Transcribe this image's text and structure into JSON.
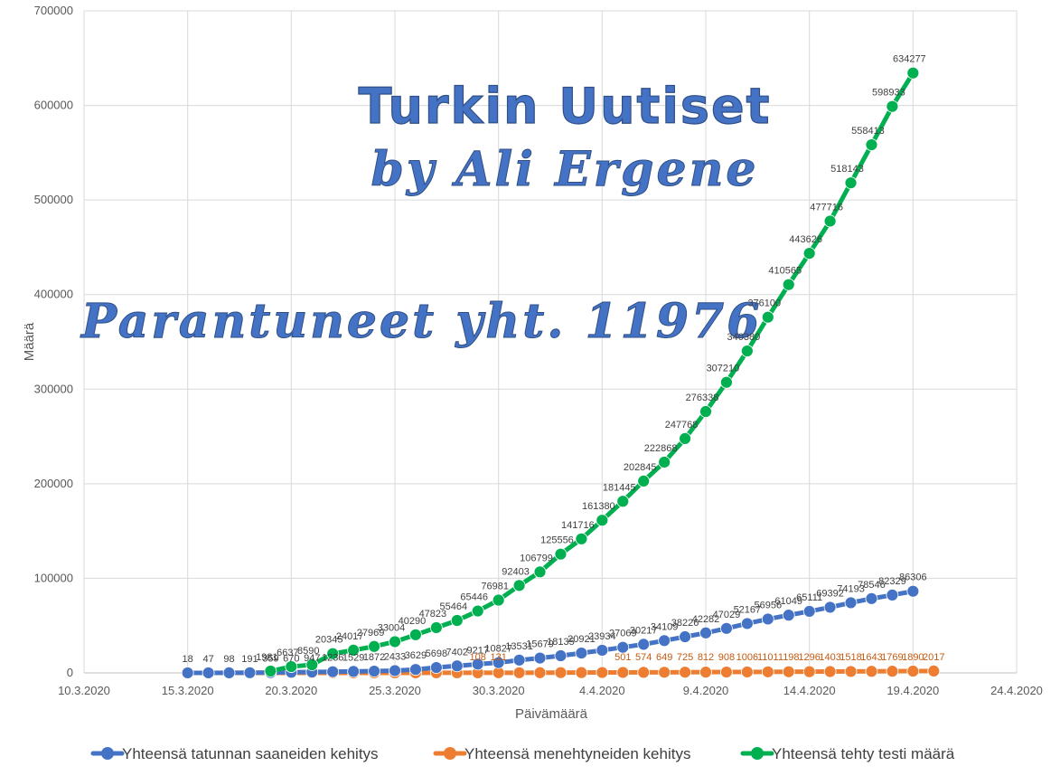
{
  "watermark": {
    "line1": "Turkin Uutiset",
    "line2": "by Ali Ergene",
    "line3": "Parantuneet yht. 11976"
  },
  "chart_data": {
    "type": "scatter",
    "mode": "lines+markers",
    "title": "",
    "xlabel": "Päivämäärä",
    "ylabel": "Määrä",
    "x_axis_type": "date",
    "xlim": [
      "2020-03-10",
      "2020-04-24"
    ],
    "ylim": [
      0,
      700000
    ],
    "x_ticks": [
      "10.3.2020",
      "15.3.2020",
      "20.3.2020",
      "25.3.2020",
      "30.3.2020",
      "4.4.2020",
      "9.4.2020",
      "14.4.2020",
      "19.4.2020",
      "24.4.2020"
    ],
    "y_ticks": [
      "0",
      "100000",
      "200000",
      "300000",
      "400000",
      "500000",
      "600000",
      "700000"
    ],
    "grid": true,
    "legend_position": "bottom",
    "series": [
      {
        "name": "Yhteensä tatunnan saaneiden kehitys",
        "color": "#4472C4",
        "start_date": "2020-03-15",
        "values": [
          18,
          47,
          98,
          191,
          359,
          670,
          947,
          1236,
          1529,
          1872,
          2433,
          3629,
          5698,
          7402,
          9217,
          10827,
          13531,
          15679,
          18135,
          20921,
          23934,
          27069,
          30217,
          34109,
          38226,
          42282,
          47029,
          52167,
          56956,
          61049,
          65111,
          69392,
          74193,
          78546,
          82329,
          86306
        ],
        "labels": [
          "18",
          "47",
          "98",
          "191",
          "359",
          "670",
          "947",
          "1236",
          "1529",
          "1872",
          "2433",
          "3629",
          "5698",
          "7402",
          "9217",
          "10827",
          "13531",
          "15679",
          "18135",
          "20921",
          "23934",
          "27069",
          "30217",
          "34109",
          "38226",
          "42282",
          "47029",
          "52167",
          "56956",
          "61049",
          "65111",
          "69392",
          "74193",
          "78546",
          "82329",
          "86306"
        ]
      },
      {
        "name": "Yhteensä menehtyneiden kehitys",
        "color": "#ED7D31",
        "start_date": "2020-03-16",
        "values": [
          0,
          1,
          2,
          3,
          4,
          9,
          21,
          30,
          37,
          44,
          59,
          75,
          92,
          108,
          131,
          168,
          214,
          277,
          356,
          425,
          501,
          574,
          649,
          725,
          812,
          908,
          1006,
          1101,
          1198,
          1296,
          1403,
          1518,
          1643,
          1769,
          1890,
          2017
        ],
        "labels": [
          "",
          "",
          "",
          "",
          "",
          "",
          "",
          "",
          "",
          "",
          "",
          "",
          "",
          "108",
          "131",
          "",
          "",
          "",
          "",
          "",
          "501",
          "574",
          "649",
          "725",
          "812",
          "908",
          "1006",
          "1101",
          "1198",
          "1296",
          "1403",
          "1518",
          "1643",
          "1769",
          "1890",
          "2017"
        ]
      },
      {
        "name": "Yhteensä tehty testi määrä",
        "color": "#00B050",
        "start_date": "2020-03-19",
        "values": [
          1981,
          6637,
          8590,
          20345,
          24017,
          27969,
          33004,
          40290,
          47823,
          55464,
          65446,
          76981,
          92403,
          106799,
          125556,
          141716,
          161380,
          181445,
          202845,
          222868,
          247768,
          276338,
          307210,
          340380,
          376100,
          410565,
          443626,
          477716,
          518143,
          558413,
          598933,
          634277
        ],
        "labels": [
          "1981",
          "6637",
          "8590",
          "20345",
          "24017",
          "27969",
          "33004",
          "40290",
          "47823",
          "55464",
          "65446",
          "76981",
          "92403",
          "106799",
          "125556",
          "141716",
          "161380",
          "181445",
          "202845",
          "222868",
          "247768",
          "276338",
          "307210",
          "340380",
          "376100",
          "410565",
          "443626",
          "477716",
          "518143",
          "558413",
          "598933",
          "634277"
        ]
      }
    ]
  }
}
